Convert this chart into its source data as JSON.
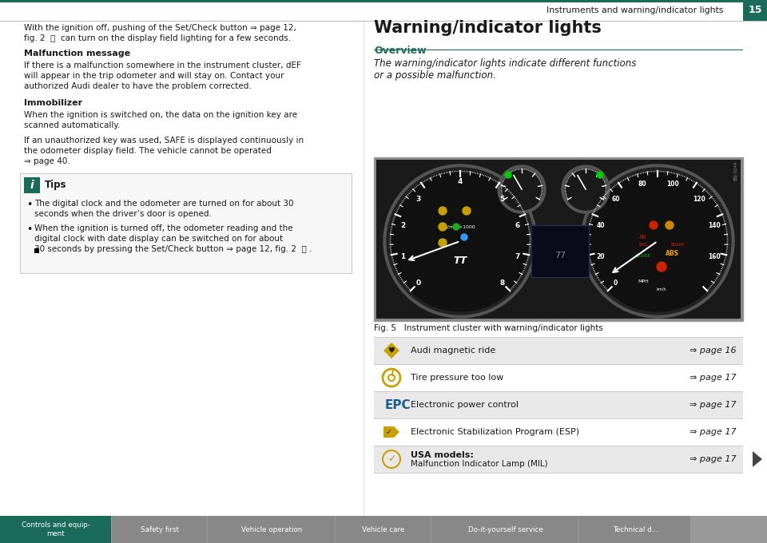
{
  "page_bg": "#ffffff",
  "header_bg": "#1a6b5a",
  "header_text": "Instruments and warning/indicator lights",
  "header_page_num": "15",
  "footer_tabs": [
    "Controls and equip-\nment",
    "Safety first",
    "Vehicle operation",
    "Vehicle care",
    "Do-it-yourself service",
    "Technical d..."
  ],
  "footer_active_color": "#1a6b5a",
  "left_intro": "With the ignition off, pushing of the Set/Check button ⇒ page 12,\nfig. 2  ⓖ  can turn on the display field lighting for a few seconds.",
  "left_title1": "Malfunction message",
  "left_body1": "If there is a malfunction somewhere in the instrument cluster, dEF\nwill appear in the trip odometer and will stay on. Contact your\nauthorized Audi dealer to have the problem corrected.",
  "left_title2": "Immobilizer",
  "left_body2a": "When the ignition is switched on, the data on the ignition key are\nscanned automatically.",
  "left_body2b": "If an unauthorized key was used, SAFE is displayed continuously in\nthe odometer display field. The vehicle cannot be operated\n⇒ page 40.",
  "tips_title": "Tips",
  "tips_body1": "The digital clock and the odometer are turned on for about 30\nseconds when the driver’s door is opened.",
  "tips_body2": "When the ignition is turned off, the odometer reading and the\ndigital clock with date display can be switched on for about\n30 seconds by pressing the Set/Check button ⇒ page 12, fig. 2  ⓖ .",
  "right_title": "Warning/indicator lights",
  "right_section": "Overview",
  "right_italic": "The warning/indicator lights indicate different functions\nor a possible malfunction.",
  "fig_caption": "Fig. 5   Instrument cluster with warning/indicator lights",
  "table_rows": [
    {
      "icon_color": "#c8a000",
      "icon_type": "magnetic",
      "text": "Audi magnetic ride",
      "page_ref": "⇒ page 16"
    },
    {
      "icon_color": "#c8a000",
      "icon_type": "tire",
      "text": "Tire pressure too low",
      "page_ref": "⇒ page 17"
    },
    {
      "icon_color": "#1a5c8a",
      "icon_type": "epc",
      "text": "Electronic power control",
      "page_ref": "⇒ page 17"
    },
    {
      "icon_color": "#c8a000",
      "icon_type": "esp",
      "text": "Electronic Stabilization Program (ESP)",
      "page_ref": "⇒ page 17"
    },
    {
      "icon_color": "#c8a000",
      "icon_type": "check",
      "text": "USA models:\nMalfunction Indicator Lamp (MIL)",
      "page_ref": "⇒ page 17"
    }
  ],
  "table_bg_odd": "#e8e8e8",
  "table_bg_even": "#ffffff",
  "teal_color": "#1a6b5a",
  "dark_text": "#1a1a1a"
}
